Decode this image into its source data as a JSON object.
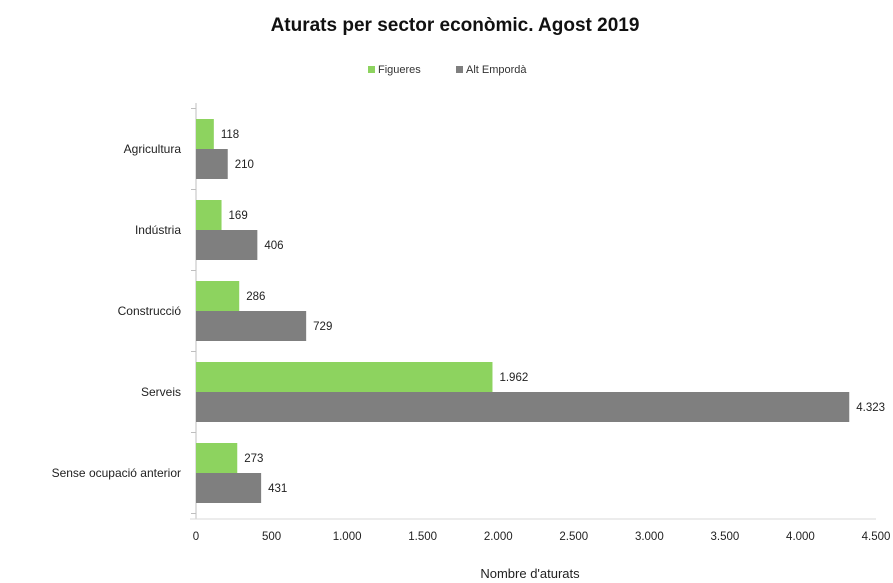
{
  "chart_data": {
    "type": "bar",
    "orientation": "horizontal",
    "title": "Aturats per sector econòmic. Agost 2019",
    "xlabel": "Nombre d'aturats",
    "ylabel": "",
    "categories": [
      "Agricultura",
      "Indústria",
      "Construcció",
      "Serveis",
      "Sense ocupació anterior"
    ],
    "series": [
      {
        "name": "Figueres",
        "values": [
          118,
          169,
          286,
          1962,
          273
        ],
        "labels": [
          "118",
          "169",
          "286",
          "1.962",
          "273"
        ],
        "color": "#8dd35f"
      },
      {
        "name": "Alt Empordà",
        "values": [
          210,
          406,
          729,
          4323,
          431
        ],
        "labels": [
          "210",
          "406",
          "729",
          "4.323",
          "431"
        ],
        "color": "#7f7f7f"
      }
    ],
    "xlim": [
      0,
      4500
    ],
    "xticks": [
      0,
      500,
      1000,
      1500,
      2000,
      2500,
      3000,
      3500,
      4000,
      4500
    ],
    "xtick_labels": [
      "0",
      "500",
      "1.000",
      "1.500",
      "2.000",
      "2.500",
      "3.000",
      "3.500",
      "4.000",
      "4.500"
    ],
    "legend_position": "top-center",
    "grid": false
  }
}
